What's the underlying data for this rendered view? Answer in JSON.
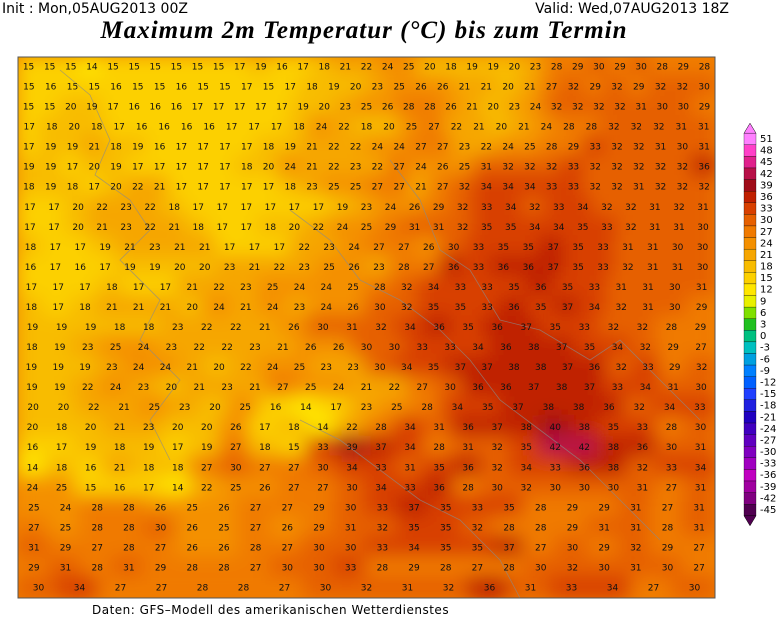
{
  "header": {
    "init": "Init : Mon,05AUG2013 00Z",
    "valid": "Valid: Wed,07AUG2013 18Z",
    "title": "Maximum 2m Temperatur (°C) bis zum Termin"
  },
  "colorbar": {
    "ticks": [
      51,
      48,
      45,
      42,
      39,
      36,
      33,
      30,
      27,
      24,
      21,
      18,
      15,
      12,
      9,
      6,
      3,
      0,
      -3,
      -6,
      -9,
      -12,
      -15,
      -18,
      -21,
      -24,
      -27,
      -30,
      -33,
      -36,
      -39,
      -42,
      -45
    ],
    "colors": [
      "#ff80ff",
      "#ff40c8",
      "#e0208c",
      "#b81048",
      "#a00c18",
      "#c02000",
      "#d84000",
      "#e66000",
      "#f07a00",
      "#f49000",
      "#f6a600",
      "#f8bc00",
      "#fcd000",
      "#ffe600",
      "#e8f000",
      "#80e000",
      "#20c020",
      "#00c080",
      "#00c0c0",
      "#00a0e0",
      "#0080ff",
      "#0060ff",
      "#2040ff",
      "#2020e0",
      "#2000c0",
      "#4000c0",
      "#6000c0",
      "#8000c0",
      "#a000c0",
      "#c000c0",
      "#a000a0",
      "#800080",
      "#500050"
    ]
  },
  "map": {
    "rows": [
      [
        15,
        15,
        15,
        14,
        15,
        15,
        15,
        15,
        15,
        15,
        17,
        19,
        16,
        17,
        18,
        21,
        22,
        24,
        25,
        20,
        18,
        19,
        19,
        20,
        23,
        28,
        29,
        30,
        29,
        30,
        28,
        29,
        28
      ],
      [
        15,
        16,
        15,
        15,
        16,
        15,
        15,
        16,
        15,
        15,
        17,
        15,
        17,
        18,
        19,
        20,
        23,
        25,
        26,
        26,
        21,
        21,
        20,
        21,
        27,
        32,
        29,
        32,
        29,
        32,
        32,
        30
      ],
      [
        15,
        15,
        20,
        19,
        17,
        16,
        16,
        16,
        17,
        17,
        17,
        17,
        17,
        19,
        20,
        23,
        25,
        26,
        28,
        28,
        26,
        21,
        20,
        23,
        24,
        32,
        32,
        32,
        32,
        31,
        30,
        30,
        29
      ],
      [
        17,
        18,
        20,
        18,
        17,
        16,
        16,
        16,
        16,
        17,
        17,
        17,
        18,
        24,
        22,
        18,
        20,
        25,
        27,
        22,
        21,
        20,
        21,
        24,
        28,
        28,
        32,
        32,
        32,
        31,
        31
      ],
      [
        17,
        19,
        19,
        21,
        18,
        19,
        16,
        17,
        17,
        17,
        17,
        18,
        19,
        21,
        22,
        22,
        24,
        24,
        27,
        27,
        23,
        22,
        24,
        25,
        28,
        29,
        33,
        32,
        32,
        31,
        30,
        31
      ],
      [
        19,
        19,
        17,
        20,
        19,
        17,
        17,
        17,
        17,
        17,
        18,
        20,
        24,
        21,
        22,
        23,
        22,
        27,
        24,
        26,
        25,
        31,
        32,
        32,
        32,
        33,
        32,
        32,
        32,
        32,
        32,
        36
      ],
      [
        18,
        19,
        18,
        17,
        20,
        22,
        21,
        17,
        17,
        17,
        17,
        17,
        18,
        23,
        25,
        25,
        27,
        27,
        21,
        27,
        32,
        34,
        34,
        34,
        33,
        33,
        32,
        32,
        31,
        32,
        32,
        32
      ],
      [
        17,
        17,
        20,
        22,
        23,
        22,
        18,
        17,
        17,
        17,
        17,
        17,
        17,
        19,
        23,
        24,
        26,
        29,
        32,
        33,
        34,
        32,
        33,
        34,
        32,
        32,
        31,
        32,
        31
      ],
      [
        17,
        17,
        20,
        21,
        23,
        22,
        21,
        18,
        17,
        17,
        18,
        20,
        22,
        24,
        25,
        29,
        31,
        31,
        32,
        35,
        35,
        34,
        34,
        35,
        33,
        32,
        31,
        31,
        30
      ],
      [
        18,
        17,
        17,
        19,
        21,
        23,
        21,
        21,
        17,
        17,
        17,
        22,
        23,
        24,
        27,
        27,
        26,
        30,
        33,
        35,
        35,
        37,
        35,
        33,
        31,
        31,
        30,
        30
      ],
      [
        16,
        17,
        16,
        17,
        19,
        19,
        20,
        20,
        23,
        21,
        22,
        23,
        25,
        26,
        23,
        28,
        27,
        36,
        33,
        36,
        36,
        37,
        35,
        33,
        32,
        31,
        31,
        30
      ],
      [
        17,
        17,
        17,
        18,
        17,
        17,
        21,
        22,
        23,
        25,
        24,
        24,
        25,
        28,
        32,
        34,
        33,
        33,
        35,
        36,
        35,
        33,
        31,
        31,
        30,
        31
      ],
      [
        18,
        17,
        18,
        21,
        21,
        21,
        20,
        24,
        21,
        24,
        23,
        24,
        26,
        30,
        32,
        35,
        35,
        33,
        36,
        35,
        37,
        34,
        32,
        31,
        30,
        29
      ],
      [
        19,
        19,
        19,
        18,
        18,
        23,
        22,
        22,
        21,
        26,
        30,
        31,
        32,
        34,
        36,
        35,
        36,
        37,
        35,
        33,
        32,
        32,
        28,
        29
      ],
      [
        18,
        19,
        23,
        25,
        24,
        23,
        22,
        22,
        23,
        21,
        26,
        26,
        30,
        30,
        33,
        33,
        34,
        36,
        38,
        37,
        35,
        34,
        32,
        29,
        27
      ],
      [
        19,
        19,
        19,
        23,
        24,
        24,
        21,
        20,
        22,
        24,
        25,
        23,
        23,
        30,
        34,
        35,
        37,
        37,
        38,
        38,
        37,
        36,
        32,
        33,
        29,
        32
      ],
      [
        19,
        19,
        22,
        24,
        23,
        20,
        21,
        23,
        21,
        27,
        25,
        24,
        21,
        22,
        27,
        30,
        36,
        36,
        37,
        38,
        37,
        33,
        34,
        31,
        30
      ],
      [
        20,
        20,
        22,
        21,
        25,
        23,
        20,
        25,
        16,
        14,
        17,
        23,
        25,
        28,
        34,
        35,
        37,
        38,
        38,
        36,
        32,
        34,
        33
      ],
      [
        20,
        18,
        20,
        21,
        23,
        20,
        20,
        26,
        17,
        18,
        14,
        22,
        28,
        34,
        31,
        36,
        37,
        38,
        40,
        38,
        35,
        33,
        28,
        30
      ],
      [
        16,
        17,
        19,
        18,
        19,
        17,
        19,
        27,
        18,
        15,
        33,
        39,
        37,
        34,
        28,
        31,
        32,
        35,
        42,
        42,
        38,
        36,
        30,
        31
      ],
      [
        14,
        18,
        16,
        21,
        18,
        18,
        27,
        30,
        27,
        27,
        30,
        34,
        33,
        31,
        35,
        36,
        32,
        34,
        33,
        36,
        38,
        32,
        33,
        34
      ],
      [
        24,
        25,
        15,
        16,
        17,
        14,
        22,
        25,
        26,
        27,
        27,
        30,
        34,
        33,
        36,
        28,
        30,
        32,
        30,
        30,
        30,
        31,
        27,
        31
      ],
      [
        25,
        24,
        28,
        28,
        26,
        25,
        26,
        27,
        27,
        29,
        30,
        33,
        37,
        35,
        33,
        35,
        28,
        29,
        29,
        31,
        27,
        31
      ],
      [
        27,
        25,
        28,
        28,
        30,
        26,
        25,
        27,
        26,
        29,
        31,
        32,
        35,
        35,
        32,
        28,
        28,
        29,
        31,
        31,
        28,
        31
      ],
      [
        31,
        29,
        27,
        28,
        27,
        26,
        26,
        28,
        27,
        30,
        30,
        33,
        34,
        35,
        35,
        37,
        27,
        30,
        29,
        32,
        29,
        27
      ],
      [
        29,
        31,
        28,
        31,
        29,
        28,
        28,
        27,
        30,
        30,
        33,
        28,
        29,
        28,
        27,
        28,
        30,
        32,
        30,
        31,
        30,
        27
      ],
      [
        30,
        34,
        27,
        27,
        28,
        28,
        27,
        30,
        32,
        31,
        32,
        36,
        31,
        33,
        34,
        27,
        30
      ]
    ]
  },
  "footer": "Daten: GFS–Modell des amerikanischen Wetterdienstes"
}
